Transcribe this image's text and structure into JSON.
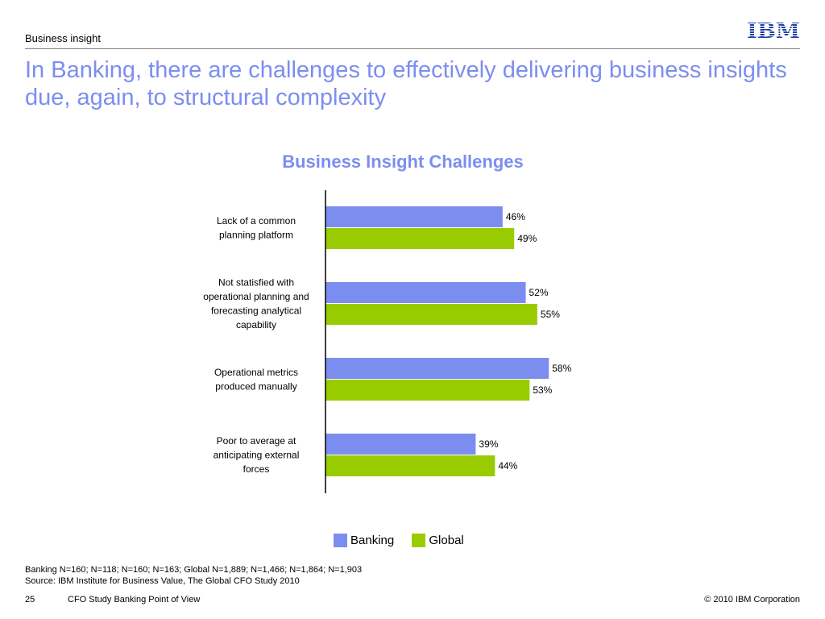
{
  "header": {
    "section": "Business insight",
    "title": "In Banking, there are challenges to effectively delivering business insights due, again, to structural complexity",
    "logo_text": "IBM"
  },
  "colors": {
    "title": "#7b8ef0",
    "banking": "#7b8ef0",
    "global": "#99cc00"
  },
  "chart_data": {
    "type": "bar",
    "orientation": "horizontal",
    "title": "Business Insight Challenges",
    "categories": [
      [
        "Lack of a common",
        "planning platform"
      ],
      [
        "Not statisfied with",
        "operational planning and",
        "forecasting analytical",
        "capability"
      ],
      [
        "Operational metrics",
        "produced manually"
      ],
      [
        "Poor to average at",
        "anticipating external",
        "forces"
      ]
    ],
    "series": [
      {
        "name": "Banking",
        "color": "#7b8ef0",
        "values": [
          46,
          52,
          58,
          39
        ],
        "labels": [
          "46%",
          "52%",
          "58%",
          "39%"
        ]
      },
      {
        "name": "Global",
        "color": "#99cc00",
        "values": [
          49,
          55,
          53,
          44
        ],
        "labels": [
          "49%",
          "55%",
          "53%",
          "44%"
        ]
      }
    ],
    "xlim": [
      0,
      100
    ],
    "grid": false,
    "legend": "bottom"
  },
  "legend": {
    "banking": "Banking",
    "global": "Global"
  },
  "footnote": {
    "line1": "Banking N=160; N=118; N=160; N=163; Global N=1,889; N=1,466; N=1,864; N=1,903",
    "line2": "Source: IBM Institute for Business Value, The Global CFO Study 2010"
  },
  "footer": {
    "page": "25",
    "study": "CFO Study Banking Point of View",
    "copyright": "© 2010 IBM Corporation"
  }
}
